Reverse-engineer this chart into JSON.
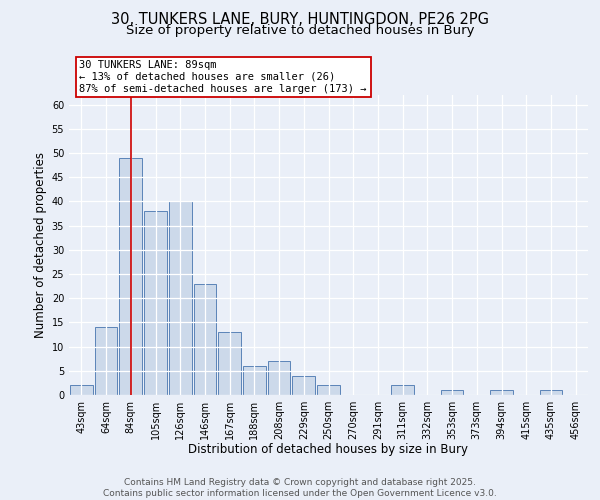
{
  "title_line1": "30, TUNKERS LANE, BURY, HUNTINGDON, PE26 2PG",
  "title_line2": "Size of property relative to detached houses in Bury",
  "xlabel": "Distribution of detached houses by size in Bury",
  "ylabel": "Number of detached properties",
  "categories": [
    "43sqm",
    "64sqm",
    "84sqm",
    "105sqm",
    "126sqm",
    "146sqm",
    "167sqm",
    "188sqm",
    "208sqm",
    "229sqm",
    "250sqm",
    "270sqm",
    "291sqm",
    "311sqm",
    "332sqm",
    "353sqm",
    "373sqm",
    "394sqm",
    "415sqm",
    "435sqm",
    "456sqm"
  ],
  "values": [
    2,
    14,
    49,
    38,
    40,
    23,
    13,
    6,
    7,
    4,
    2,
    0,
    0,
    2,
    0,
    1,
    0,
    1,
    0,
    1,
    0
  ],
  "bar_color": "#ccd9ea",
  "bar_edge_color": "#5b84b8",
  "vline_index": 2,
  "vline_color": "#cc0000",
  "annotation_text_line1": "30 TUNKERS LANE: 89sqm",
  "annotation_text_line2": "← 13% of detached houses are smaller (26)",
  "annotation_text_line3": "87% of semi-detached houses are larger (173) →",
  "box_edge_color": "#cc0000",
  "ylim": [
    0,
    62
  ],
  "yticks": [
    0,
    5,
    10,
    15,
    20,
    25,
    30,
    35,
    40,
    45,
    50,
    55,
    60
  ],
  "footer_text": "Contains HM Land Registry data © Crown copyright and database right 2025.\nContains public sector information licensed under the Open Government Licence v3.0.",
  "bg_color": "#eaeff8",
  "plot_bg_color": "#eaeff8",
  "grid_color": "#ffffff",
  "title_fontsize": 10.5,
  "subtitle_fontsize": 9.5,
  "axis_label_fontsize": 8.5,
  "tick_fontsize": 7,
  "annotation_fontsize": 7.5,
  "footer_fontsize": 6.5,
  "footer_color": "#555555"
}
